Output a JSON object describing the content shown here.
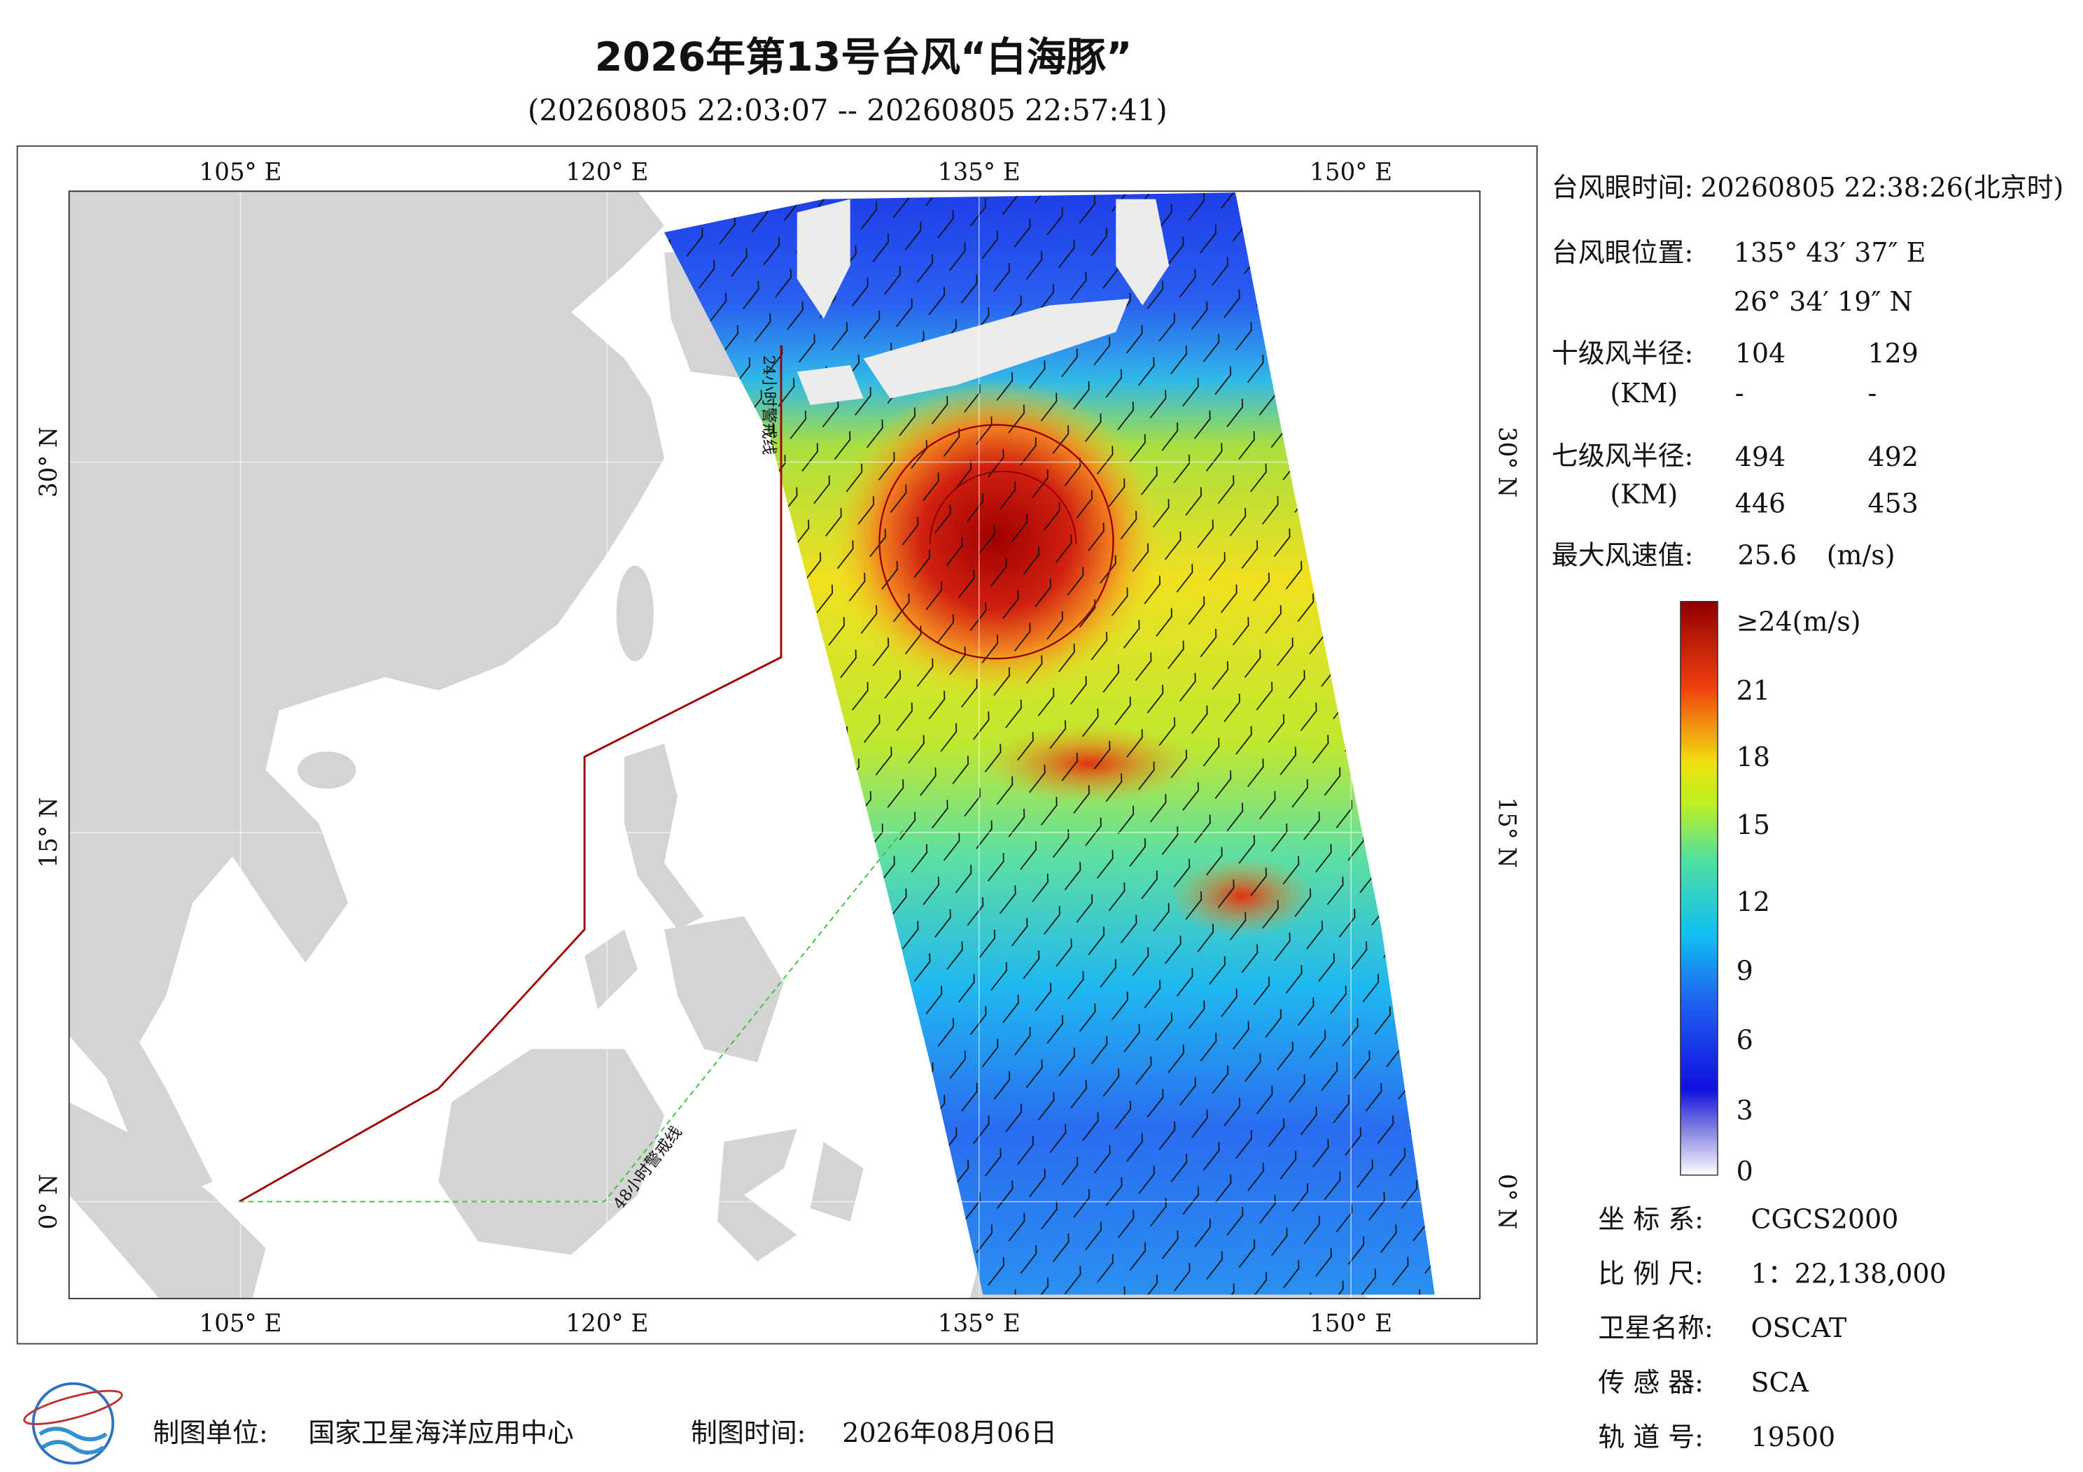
{
  "header": {
    "title": "2026年第13号台风“白海豚”",
    "subtitle": "(20260805 22:03:07 -- 20260805 22:57:41)"
  },
  "map": {
    "top_ticks": [
      "105° E",
      "120° E",
      "135° E",
      "150° E"
    ],
    "bottom_ticks": [
      "105° E",
      "120° E",
      "135° E",
      "150° E"
    ],
    "left_ticks": [
      "30° N",
      "15° N",
      "0° N"
    ],
    "right_ticks": [
      "30° N",
      "15° N",
      "0° N"
    ],
    "warning_24h": "24小时警戒线",
    "warning_48h": "48小时警戒线"
  },
  "info": {
    "eye_time": {
      "label": "台风眼时间:",
      "value": "20260805 22:38:26(北京时)"
    },
    "eye_position": {
      "label": "台风眼位置:",
      "lon": "135° 43′ 37″ E",
      "lat": "26° 34′ 19″ N"
    },
    "r10": {
      "label": "十级风半径:",
      "unit": "(KM)",
      "values": [
        "104",
        "129",
        "-",
        "-"
      ]
    },
    "r7": {
      "label": "七级风半径:",
      "unit": "(KM)",
      "values": [
        "494",
        "492",
        "446",
        "453"
      ]
    },
    "max_wind": {
      "label": "最大风速值:",
      "value": "25.6",
      "unit": "(m/s)"
    }
  },
  "colorbar": {
    "labels": [
      "≥24(m/s)",
      "21",
      "18",
      "15",
      "12",
      "9",
      "6",
      "3",
      "0"
    ]
  },
  "metadata": [
    {
      "label": "坐 标 系:",
      "value": "CGCS2000"
    },
    {
      "label": "比 例 尺:",
      "value": "1：22,138,000"
    },
    {
      "label": "卫星名称:",
      "value": "OSCAT"
    },
    {
      "label": "传 感 器:",
      "value": "SCA"
    },
    {
      "label": "轨 道 号:",
      "value": "19500"
    }
  ],
  "footer": {
    "unit_label": "制图单位:",
    "unit": "国家卫星海洋应用中心",
    "time_label": "制图时间:",
    "time": "2026年08月06日"
  }
}
